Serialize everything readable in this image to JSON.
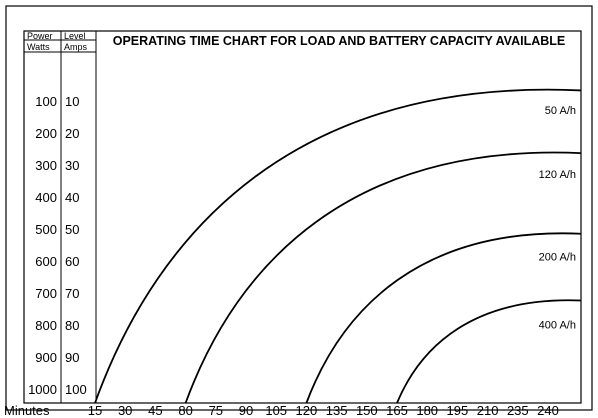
{
  "chart_data": {
    "type": "line",
    "title": "OPERATING TIME CHART FOR LOAD AND BATTERY CAPACITY AVAILABLE",
    "header": {
      "power_top": "Power",
      "power_bottom": "Watts",
      "level_top": "Level",
      "level_bottom": "Amps"
    },
    "x_axis_label": "Minutes",
    "x_ticks": [
      "15",
      "30",
      "45",
      "80",
      "75",
      "90",
      "105",
      "120",
      "135",
      "150",
      "165",
      "180",
      "195",
      "210",
      "235",
      "240"
    ],
    "y_ticks_watts": [
      "100",
      "200",
      "300",
      "400",
      "500",
      "600",
      "700",
      "800",
      "900",
      "1000"
    ],
    "y_ticks_amps": [
      "10",
      "20",
      "30",
      "40",
      "50",
      "60",
      "70",
      "80",
      "90",
      "100"
    ],
    "series": [
      {
        "name": "50 A/h",
        "x_at_max_load": 15,
        "x_at_min_load": 240,
        "plateau_watts": 47
      },
      {
        "name": "120 A/h",
        "x_at_max_load": 80,
        "x_at_min_load": 240,
        "plateau_watts": 247
      },
      {
        "name": "200 A/h",
        "x_at_max_load": 120,
        "x_at_min_load": 240,
        "plateau_watts": 504
      },
      {
        "name": "400 A/h",
        "x_at_max_load": 165,
        "x_at_min_load": 240,
        "plateau_watts": 717
      }
    ]
  }
}
